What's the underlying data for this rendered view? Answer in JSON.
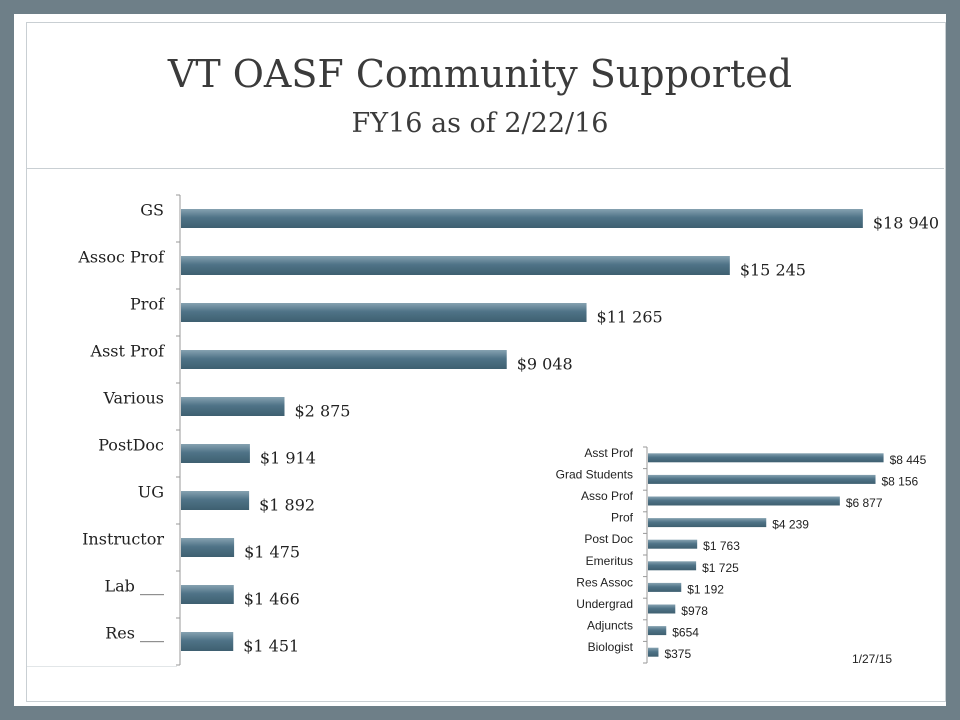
{
  "title": "VT OASF Community Supported",
  "subtitle": "FY16 as of 2/22/16",
  "note": "1/27/15",
  "colors": {
    "bar": "#4f7387",
    "bar_highlight": "#86a2b1",
    "background": "#ffffff",
    "frame": "#6e7f88"
  },
  "chart_data": [
    {
      "type": "bar",
      "orientation": "horizontal",
      "categories": [
        "GS",
        "Assoc Prof",
        "Prof",
        "Asst Prof",
        "Various",
        "PostDoc",
        "UG",
        "Instructor",
        "Lab ___",
        "Res ___"
      ],
      "values": [
        18940,
        15245,
        11265,
        9048,
        2875,
        1914,
        1892,
        1475,
        1466,
        1451
      ],
      "data_labels": [
        "$18 940",
        "$15 245",
        "$11 265",
        "$9 048",
        "$2 875",
        "$1 914",
        "$1 892",
        "$1 475",
        "$1 466",
        "$1 451"
      ],
      "title": "",
      "xlabel": "",
      "ylabel": "",
      "xlim": [
        0,
        20000
      ],
      "grid": false
    },
    {
      "type": "bar",
      "orientation": "horizontal",
      "categories": [
        "Asst Prof",
        "Grad Students",
        "Asso Prof",
        "Prof",
        "Post Doc",
        "Emeritus",
        "Res Assoc",
        "Undergrad",
        "Adjuncts",
        "Biologist"
      ],
      "values": [
        8445,
        8156,
        6877,
        4239,
        1763,
        1725,
        1192,
        978,
        654,
        375
      ],
      "data_labels": [
        "$8 445",
        "$8 156",
        "$6 877",
        "$4 239",
        "$1 763",
        "$1 725",
        "$1 192",
        "$978",
        "$654",
        "$375"
      ],
      "title": "",
      "xlabel": "",
      "ylabel": "",
      "xlim": [
        0,
        9500
      ],
      "grid": false
    }
  ]
}
